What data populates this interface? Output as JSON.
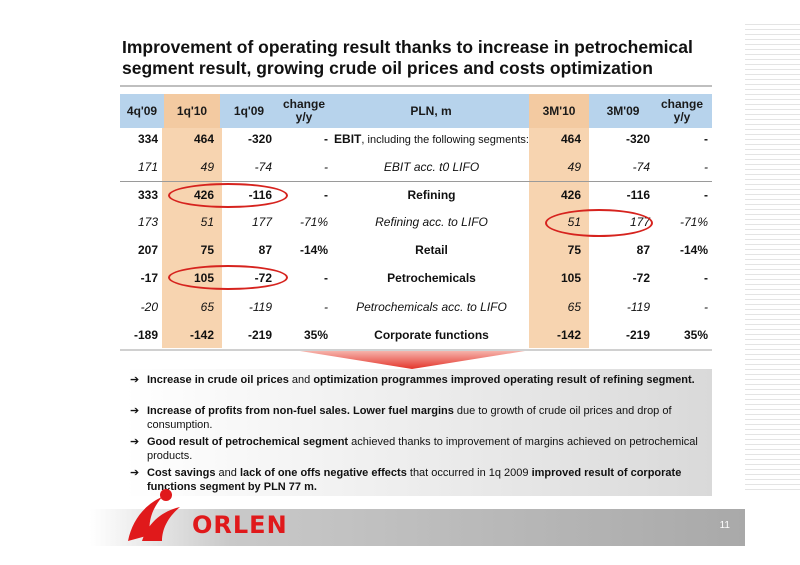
{
  "title": "Improvement of operating result thanks to increase in petrochemical segment result, growing crude oil prices and costs optimization",
  "table": {
    "headers": [
      "4q'09",
      "1q'10",
      "1q'09",
      "change y/y",
      "PLN, m",
      "3M'10",
      "3M'09",
      "change y/y"
    ],
    "rows": [
      {
        "c1": "334",
        "c2": "464",
        "c3": "-320",
        "c4": "-",
        "label_bold": "EBIT",
        "label_rest": ", including the following segments:",
        "c5": "464",
        "c6": "-320",
        "c7": "-",
        "style": "bold"
      },
      {
        "c1": "171",
        "c2": "49",
        "c3": "-74",
        "c4": "-",
        "label": "EBIT acc. t0 LIFO",
        "c5": "49",
        "c6": "-74",
        "c7": "-",
        "style": "italic"
      },
      {
        "c1": "333",
        "c2": "426",
        "c3": "-116",
        "c4": "-",
        "label": "Refining",
        "c5": "426",
        "c6": "-116",
        "c7": "-",
        "style": "bold"
      },
      {
        "c1": "173",
        "c2": "51",
        "c3": "177",
        "c4": "-71%",
        "label": "Refining acc. to LIFO",
        "c5": "51",
        "c6": "177",
        "c7": "-71%",
        "style": "italic"
      },
      {
        "c1": "207",
        "c2": "75",
        "c3": "87",
        "c4": "-14%",
        "label": "Retail",
        "c5": "75",
        "c6": "87",
        "c7": "-14%",
        "style": "bold"
      },
      {
        "c1": "-17",
        "c2": "105",
        "c3": "-72",
        "c4": "-",
        "label": "Petrochemicals",
        "c5": "105",
        "c6": "-72",
        "c7": "-",
        "style": "bold"
      },
      {
        "c1": "-20",
        "c2": "65",
        "c3": "-119",
        "c4": "-",
        "label": "Petrochemicals acc. to LIFO",
        "c5": "65",
        "c6": "-119",
        "c7": "-",
        "style": "italic"
      },
      {
        "c1": "-189",
        "c2": "-142",
        "c3": "-219",
        "c4": "35%",
        "label": "Corporate functions",
        "c5": "-142",
        "c6": "-219",
        "c7": "35%",
        "style": "bold"
      }
    ]
  },
  "bullets": [
    {
      "segments": [
        {
          "t": "Increase in crude oil prices",
          "b": true
        },
        {
          "t": " and ",
          "b": false
        },
        {
          "t": "optimization programmes improved operating result of refining segment.",
          "b": true
        }
      ]
    },
    {
      "segments": [
        {
          "t": "Increase of profits from non-fuel sales. Lower fuel margins",
          "b": true
        },
        {
          "t": " due to growth of crude oil prices and drop of consumption.",
          "b": false
        }
      ]
    },
    {
      "segments": [
        {
          "t": "Good result of petrochemical segment",
          "b": true
        },
        {
          "t": " achieved thanks to improvement of margins achieved on petrochemical products.",
          "b": false
        }
      ]
    },
    {
      "segments": [
        {
          "t": "Cost savings",
          "b": true
        },
        {
          "t": " and ",
          "b": false
        },
        {
          "t": "lack of one offs negative effects",
          "b": true
        },
        {
          "t": " that occurred in 1q 2009 ",
          "b": false
        },
        {
          "t": "improved result of corporate functions segment by PLN 77 m.",
          "b": true
        }
      ]
    }
  ],
  "arrow_glyph": "➔",
  "logo_text": "ORLEN",
  "page_number": "11",
  "colors": {
    "header_blue": "#b7d3ec",
    "highlight_orange": "#f7d4b0",
    "brand_red": "#e0191b"
  }
}
